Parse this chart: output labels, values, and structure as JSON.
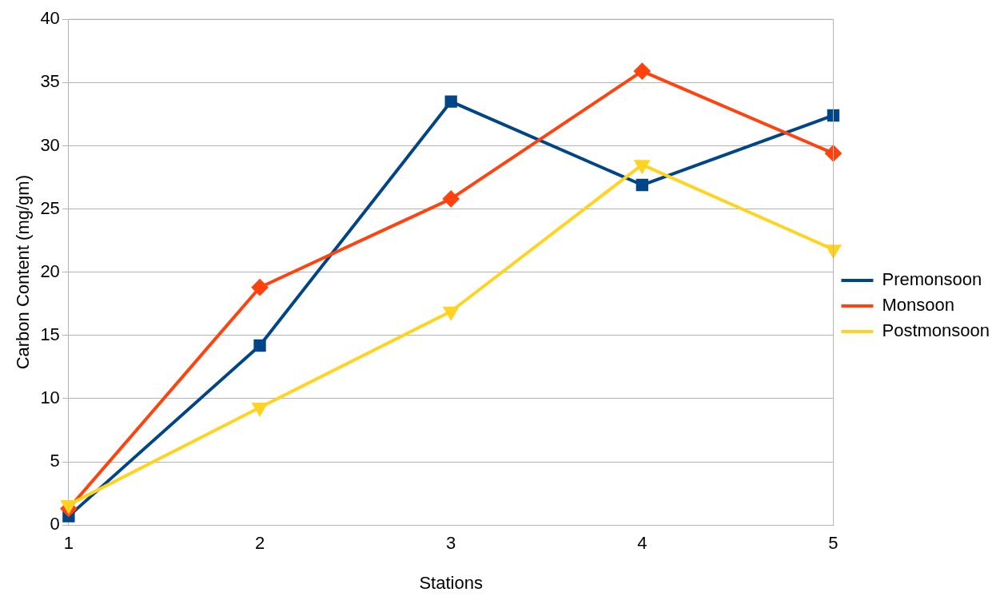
{
  "chart_data": {
    "type": "line",
    "xlabel": "Stations",
    "ylabel": "Carbon Content (mg/gm)",
    "categories": [
      "1",
      "2",
      "3",
      "4",
      "5"
    ],
    "ylim": [
      0,
      40
    ],
    "yticks": [
      0,
      5,
      10,
      15,
      20,
      25,
      30,
      35,
      40
    ],
    "grid": "y",
    "legend": "right",
    "line_style": "solid",
    "series": [
      {
        "name": "Premonsoon",
        "color": "#004586",
        "marker": "square",
        "values": [
          0.7,
          14.2,
          33.5,
          26.9,
          32.4
        ]
      },
      {
        "name": "Monsoon",
        "color": "#ff420e",
        "marker": "diamond",
        "values": [
          1.3,
          18.8,
          25.8,
          35.9,
          29.4
        ]
      },
      {
        "name": "Postmonsoon",
        "color": "#ffd320",
        "marker": "triangle",
        "values": [
          1.6,
          9.3,
          16.9,
          28.5,
          21.8
        ]
      }
    ]
  }
}
